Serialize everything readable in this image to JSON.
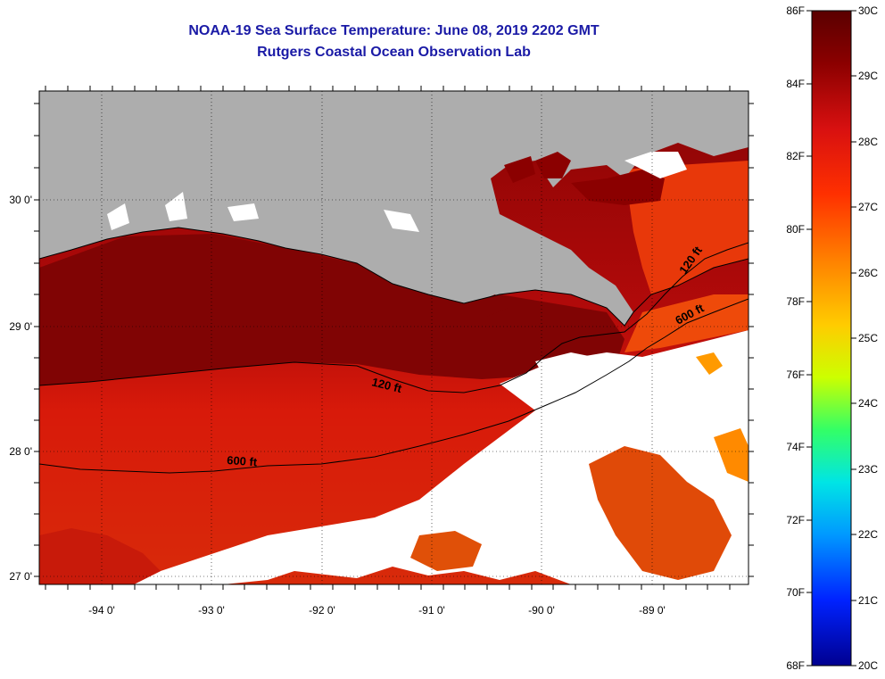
{
  "title": "NOAA-19 Sea Surface Temperature:  June 08, 2019 2202 GMT",
  "subtitle": "Rutgers Coastal Ocean Observation Lab",
  "map": {
    "lon_labels": [
      "-94 0'",
      "-93 0'",
      "-92 0'",
      "-91 0'",
      "-90 0'",
      "-89 0'"
    ],
    "lat_labels": [
      "30 0'",
      "29 0'",
      "28 0'",
      "27 0'"
    ],
    "isobath_labels": [
      "120 ft",
      "600 ft",
      "120 ft",
      "600 ft"
    ]
  },
  "colorbar": {
    "f_labels": [
      "86F",
      "84F",
      "82F",
      "80F",
      "78F",
      "76F",
      "74F",
      "72F",
      "70F",
      "68F"
    ],
    "c_labels": [
      "30C",
      "29C",
      "28C",
      "27C",
      "26C",
      "25C",
      "24C",
      "23C",
      "22C",
      "21C",
      "20C"
    ]
  },
  "colors": {
    "title": "#1a1aa6",
    "land": "#adadad",
    "sea_warm": "#c61010",
    "sea_hot": "#7a0000",
    "cloud": "#ffffff"
  }
}
